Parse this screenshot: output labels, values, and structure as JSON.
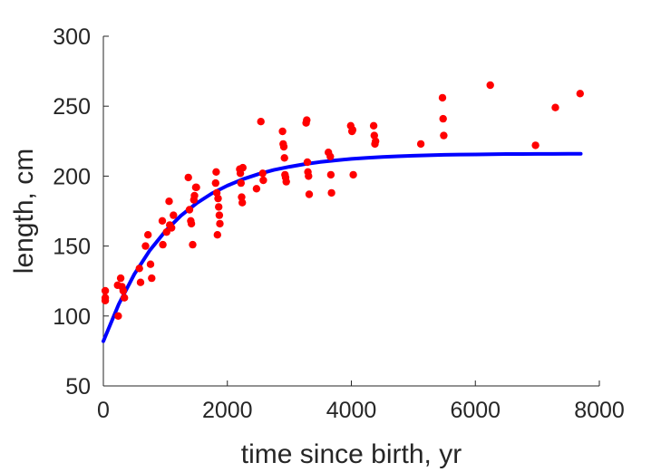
{
  "chart_data": {
    "type": "scatter",
    "xlabel": "time since birth, yr",
    "ylabel": "length, cm",
    "xlim": [
      0,
      8000
    ],
    "ylim": [
      50,
      300
    ],
    "xticks": [
      0,
      2000,
      4000,
      6000,
      8000
    ],
    "yticks": [
      50,
      100,
      150,
      200,
      250,
      300
    ],
    "grid": false,
    "colors": {
      "points": "#ff0000",
      "fit": "#0000ff",
      "axis": "#262626"
    },
    "series": [
      {
        "kind": "scatter",
        "x": [
          30,
          30,
          30,
          230,
          240,
          280,
          300,
          320,
          340,
          580,
          600,
          680,
          720,
          760,
          780,
          950,
          960,
          1020,
          1060,
          1070,
          1100,
          1130,
          1370,
          1390,
          1410,
          1420,
          1440,
          1460,
          1470,
          1490,
          1500,
          1810,
          1820,
          1830,
          1840,
          1850,
          1860,
          1870,
          1880,
          2200,
          2210,
          2220,
          2230,
          2240,
          2250,
          2470,
          2540,
          2570,
          2580,
          2890,
          2900,
          2910,
          2920,
          2930,
          2940,
          2950,
          3270,
          3280,
          3290,
          3300,
          3310,
          3320,
          3630,
          3660,
          3670,
          3680,
          3990,
          4010,
          4020,
          4030,
          4360,
          4370,
          4380,
          4390,
          5120,
          5470,
          5480,
          5490,
          6240,
          6970,
          7290,
          7690
        ],
        "y": [
          118,
          113,
          111,
          122,
          100,
          127,
          121,
          118,
          113,
          134,
          124,
          150,
          158,
          137,
          127,
          168,
          151,
          160,
          182,
          165,
          163,
          172,
          199,
          176,
          168,
          166,
          151,
          183,
          186,
          192,
          192,
          195,
          203,
          188,
          158,
          184,
          178,
          172,
          166,
          205,
          202,
          195,
          185,
          181,
          206,
          191,
          239,
          202,
          197,
          232,
          223,
          221,
          213,
          201,
          199,
          196,
          238,
          240,
          210,
          203,
          200,
          187,
          217,
          214,
          201,
          188,
          236,
          232,
          233,
          201,
          236,
          229,
          223,
          225,
          223,
          256,
          241,
          229,
          265,
          222,
          249,
          259
        ]
      },
      {
        "kind": "line",
        "x": [
          0,
          250,
          500,
          750,
          1000,
          1250,
          1500,
          1750,
          2000,
          2250,
          2500,
          2750,
          3000,
          3250,
          3500,
          3750,
          4000,
          4250,
          4500,
          4750,
          5000,
          5250,
          5500,
          5750,
          6000,
          6250,
          6500,
          6750,
          7000,
          7250,
          7500,
          7700
        ],
        "y": [
          82,
          108.6,
          129.9,
          147.0,
          160.7,
          171.7,
          180.5,
          187.6,
          193.2,
          197.8,
          201.4,
          204.4,
          206.7,
          208.6,
          210.1,
          211.3,
          212.3,
          213.0,
          213.7,
          214.2,
          214.6,
          214.9,
          215.2,
          215.4,
          215.5,
          215.7,
          215.8,
          215.8,
          215.9,
          215.9,
          216.0,
          216.0
        ]
      }
    ]
  }
}
